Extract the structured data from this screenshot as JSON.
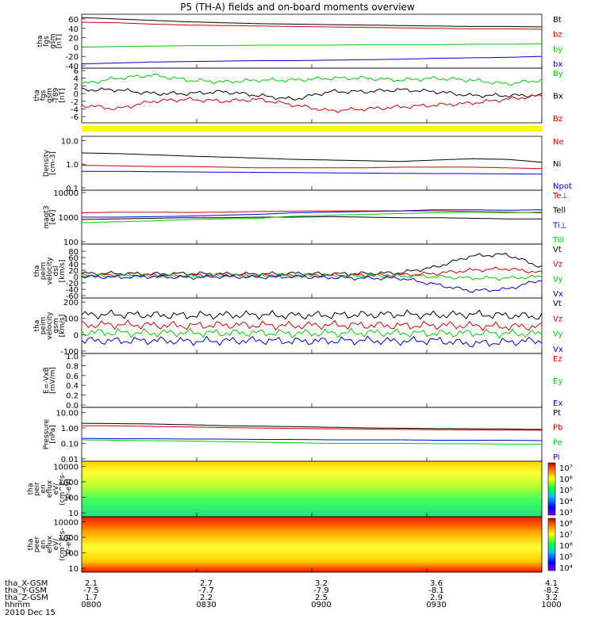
{
  "chart_data": {
    "type": "line",
    "title": "P5 (TH-A) fields and on-board moments overview",
    "x_time_labels": [
      "0800",
      "0830",
      "0900",
      "0930",
      "1000"
    ],
    "panels": [
      {
        "id": "fgs",
        "ylabel": [
          "tha",
          "fgs",
          "gsm",
          "[nT]"
        ],
        "ylim": [
          -40,
          65
        ],
        "ticks": [
          "60",
          "40",
          "20",
          "0",
          "-20",
          "-40"
        ],
        "tick_values": [
          60,
          40,
          20,
          0,
          -20,
          -40
        ],
        "log": false,
        "series": [
          {
            "name": "Bt",
            "color": "#000000",
            "values": [
              63,
              60,
              57,
              54,
              52,
              50,
              49,
              48,
              47,
              46,
              45,
              44,
              44,
              43
            ]
          },
          {
            "name": "bz",
            "color": "#cc0000",
            "values": [
              53,
              52,
              49,
              47,
              46,
              45,
              44,
              43,
              42,
              41,
              40,
              39,
              39,
              38
            ]
          },
          {
            "name": "by",
            "color": "#00cc00",
            "values": [
              0,
              1,
              2,
              3,
              3,
              4,
              4,
              4,
              5,
              5,
              5,
              6,
              6,
              7
            ]
          },
          {
            "name": "bx",
            "color": "#0000cc",
            "values": [
              -36,
              -34,
              -32,
              -31,
              -30,
              -29,
              -29,
              -28,
              -27,
              -26,
              -24,
              -23,
              -22,
              -20
            ]
          }
        ]
      },
      {
        "id": "fgs_dt",
        "ylabel": [
          "tha",
          "fgs",
          "gsm",
          "-T89",
          "[nT]"
        ],
        "ylim": [
          -7,
          6
        ],
        "ticks": [
          "6",
          "4",
          "2",
          "0",
          "-2",
          "-4",
          "-6"
        ],
        "tick_values": [
          6,
          4,
          2,
          0,
          -2,
          -4,
          -6
        ],
        "log": false,
        "series": [
          {
            "name": "By",
            "color": "#00cc00",
            "values": [
              2.5,
              4,
              4.8,
              3.5,
              3,
              3.5,
              3.5,
              4,
              4,
              3.5,
              4,
              3.5,
              2.5,
              3.5
            ]
          },
          {
            "name": "Bx",
            "color": "#000000",
            "values": [
              1,
              1,
              0,
              0,
              0.5,
              -0.5,
              -1.5,
              0.5,
              0.5,
              1,
              0.5,
              -0.5,
              -0.5,
              -0.5
            ]
          },
          {
            "name": "Bz",
            "color": "#cc0000",
            "values": [
              -3,
              -4,
              -2,
              -1.5,
              -2,
              -1.5,
              -3,
              -4.5,
              -4,
              -3.5,
              -3,
              -2.5,
              -1.5,
              -0.5
            ]
          }
        ]
      },
      {
        "id": "density",
        "ylabel": [
          "Density",
          "[cm-3]"
        ],
        "ylim": [
          0.1,
          12
        ],
        "ticks": [
          "10.0",
          "1.0",
          "0.1"
        ],
        "tick_values": [
          10,
          1,
          0.1
        ],
        "log": true,
        "series": [
          {
            "name": "Ne",
            "color": "#cc0000",
            "values": [
              0.9,
              0.85,
              0.8,
              0.8,
              0.75,
              0.7,
              0.7,
              0.7,
              0.7,
              0.75,
              0.75,
              0.75,
              0.7,
              0.65
            ]
          },
          {
            "name": "Ni",
            "color": "#000000",
            "values": [
              3,
              2.8,
              2.5,
              2.2,
              2,
              1.8,
              1.6,
              1.5,
              1.4,
              1.3,
              1.5,
              1.7,
              1.6,
              1.2
            ]
          },
          {
            "name": "Npot",
            "color": "#0000cc",
            "values": [
              0.5,
              0.5,
              0.48,
              0.47,
              0.46,
              0.45,
              0.44,
              0.43,
              0.42,
              0.41,
              0.4,
              0.4,
              0.39,
              0.38
            ]
          }
        ]
      },
      {
        "id": "temp",
        "ylabel": [
          "magt3",
          "[eV]"
        ],
        "ylim": [
          100,
          10000
        ],
        "ticks": [
          "10000",
          "1000",
          "100"
        ],
        "tick_values": [
          10000,
          1000,
          100
        ],
        "log": true,
        "series": [
          {
            "name": "Te⊥",
            "color": "#cc0000",
            "values": [
              1500,
              1600,
              1600,
              1550,
              1600,
              1700,
              1750,
              1800,
              1800,
              1800,
              1800,
              1700,
              1600,
              1500
            ]
          },
          {
            "name": "Tell",
            "color": "#000000",
            "values": [
              800,
              850,
              900,
              950,
              950,
              1000,
              1000,
              1050,
              1000,
              950,
              950,
              900,
              850,
              850
            ]
          },
          {
            "name": "Ti⊥",
            "color": "#0000cc",
            "values": [
              1000,
              1000,
              1050,
              1100,
              1200,
              1300,
              1500,
              1600,
              1700,
              1800,
              2000,
              2000,
              1900,
              2000
            ]
          },
          {
            "name": "Till",
            "color": "#00cc00",
            "values": [
              600,
              650,
              700,
              800,
              850,
              900,
              1100,
              1200,
              1300,
              1400,
              1500,
              1600,
              1500,
              1600
            ]
          }
        ]
      },
      {
        "id": "vel_eesa",
        "ylabel": [
          "tha",
          "peim",
          "velocity",
          "dsl",
          "[km/s]"
        ],
        "ylim": [
          -60,
          95
        ],
        "ticks": [
          "80",
          "60",
          "40",
          "20",
          "0",
          "-20",
          "-40",
          "-60"
        ],
        "tick_values": [
          80,
          60,
          40,
          20,
          0,
          -20,
          -40,
          -60
        ],
        "log": false,
        "series": [
          {
            "name": "Vt",
            "color": "#000000",
            "values": [
              10,
              10,
              8,
              10,
              8,
              8,
              10,
              8,
              10,
              12,
              30,
              65,
              70,
              30
            ]
          },
          {
            "name": "Vz",
            "color": "#cc0000",
            "values": [
              4,
              5,
              4,
              3,
              5,
              4,
              3,
              5,
              4,
              5,
              10,
              20,
              25,
              12
            ]
          },
          {
            "name": "Vy",
            "color": "#00cc00",
            "values": [
              2,
              3,
              2,
              2,
              3,
              2,
              3,
              2,
              3,
              2,
              0,
              -5,
              -5,
              0
            ]
          },
          {
            "name": "Vx",
            "color": "#0000cc",
            "values": [
              0,
              -2,
              0,
              -3,
              0,
              -2,
              0,
              -3,
              -5,
              -5,
              -25,
              -45,
              -40,
              -10
            ]
          }
        ]
      },
      {
        "id": "vel_gsm",
        "ylabel": [
          "tha",
          "peim",
          "velocity",
          "gsm",
          "[km/s]"
        ],
        "ylim": [
          -100,
          210
        ],
        "ticks": [
          "200",
          "100",
          "0",
          "-100"
        ],
        "tick_values": [
          200,
          100,
          0,
          -100
        ],
        "log": false,
        "series": [
          {
            "name": "Vt",
            "color": "#000000",
            "values": [
              120,
              125,
              120,
              118,
              120,
              122,
              118,
              120,
              122,
              125,
              120,
              125,
              118,
              112
            ]
          },
          {
            "name": "Vz",
            "color": "#cc0000",
            "values": [
              60,
              62,
              58,
              55,
              60,
              58,
              55,
              60,
              58,
              55,
              58,
              55,
              50,
              50
            ]
          },
          {
            "name": "Vy",
            "color": "#00cc00",
            "values": [
              15,
              12,
              10,
              12,
              10,
              12,
              8,
              10,
              12,
              10,
              8,
              10,
              8,
              5
            ]
          },
          {
            "name": "Vx",
            "color": "#0000cc",
            "values": [
              -35,
              -38,
              -35,
              -40,
              -38,
              -35,
              -40,
              -38,
              -35,
              -40,
              -35,
              -55,
              -45,
              -35
            ]
          }
        ]
      },
      {
        "id": "efield",
        "ylabel": [
          "E=-VxB",
          "[mV/m]"
        ],
        "ylim": [
          0,
          1
        ],
        "ticks": [
          "1.0",
          "0.8",
          "0.6",
          "0.4",
          "0.2",
          "0.0"
        ],
        "tick_values": [
          1,
          0.8,
          0.6,
          0.4,
          0.2,
          0
        ],
        "log": false,
        "series": [
          {
            "name": "Ez",
            "color": "#cc0000",
            "values": []
          },
          {
            "name": "Ey",
            "color": "#00cc00",
            "values": []
          },
          {
            "name": "Ex",
            "color": "#0000cc",
            "values": []
          }
        ]
      },
      {
        "id": "pressure",
        "ylabel": [
          "Pressure",
          "[nPa]"
        ],
        "ylim": [
          0.01,
          15
        ],
        "ticks": [
          "10.00",
          "1.00",
          "0.10",
          "0.01"
        ],
        "tick_values": [
          10,
          1,
          0.1,
          0.01
        ],
        "log": true,
        "series": [
          {
            "name": "Pt",
            "color": "#000000",
            "values": [
              2,
              1.9,
              1.8,
              1.6,
              1.4,
              1.3,
              1.2,
              1.1,
              1.0,
              0.95,
              0.9,
              0.88,
              0.85,
              0.8
            ]
          },
          {
            "name": "Pb",
            "color": "#cc0000",
            "values": [
              1.4,
              1.35,
              1.25,
              1.15,
              1.05,
              0.98,
              0.92,
              0.88,
              0.84,
              0.8,
              0.77,
              0.74,
              0.72,
              0.7
            ]
          },
          {
            "name": "Pe",
            "color": "#00cc00",
            "values": [
              0.17,
              0.16,
              0.15,
              0.14,
              0.13,
              0.12,
              0.11,
              0.1,
              0.1,
              0.1,
              0.095,
              0.095,
              0.09,
              0.09
            ]
          },
          {
            "name": "Pi",
            "color": "#0000cc",
            "values": [
              0.21,
              0.2,
              0.2,
              0.19,
              0.19,
              0.18,
              0.18,
              0.17,
              0.17,
              0.17,
              0.16,
              0.16,
              0.16,
              0.15
            ]
          }
        ]
      },
      {
        "id": "ion_spec",
        "ylabel": [
          "tha",
          "peir",
          "en",
          "eflux",
          "eV/",
          "(cm^2-s-",
          "sr-eV)"
        ],
        "ylim": [
          8,
          15000
        ],
        "ticks": [
          "10000",
          "1000",
          "100",
          "10"
        ],
        "tick_values": [
          10000,
          1000,
          100,
          10
        ],
        "log": true,
        "spectrogram": true,
        "colorbar_ticks": [
          "10⁷",
          "10⁶",
          "10⁵",
          "10⁴",
          "10³"
        ]
      },
      {
        "id": "elec_spec",
        "ylabel": [
          "tha",
          "peer",
          "en",
          "eflux",
          "eV/",
          "(cm^2-s-",
          "sr-eV)"
        ],
        "ylim": [
          8,
          15000
        ],
        "ticks": [
          "10000",
          "1000",
          "100",
          "10"
        ],
        "tick_values": [
          10000,
          1000,
          100,
          10
        ],
        "log": true,
        "spectrogram": true,
        "colorbar_ticks": [
          "10⁸",
          "10⁷",
          "10⁶",
          "10⁵",
          "10⁴"
        ]
      }
    ],
    "yellow_bar_color": "#ffff00",
    "ephemeris": {
      "rows": [
        {
          "label": "tha_X-GSM",
          "values": [
            "2.1",
            "2.7",
            "3.2",
            "3.6",
            "4.1"
          ]
        },
        {
          "label": "tha_Y-GSM",
          "values": [
            "-7.5",
            "-7.7",
            "-7.9",
            "-8.1",
            "-8.2"
          ]
        },
        {
          "label": "tha_Z-GSM",
          "values": [
            "1.7",
            "2.2",
            "2.5",
            "2.9",
            "3.2"
          ]
        },
        {
          "label": "hhmm",
          "values": [
            "0800",
            "0830",
            "0900",
            "0930",
            "1000"
          ]
        }
      ],
      "date": "2010 Dec 15"
    }
  }
}
